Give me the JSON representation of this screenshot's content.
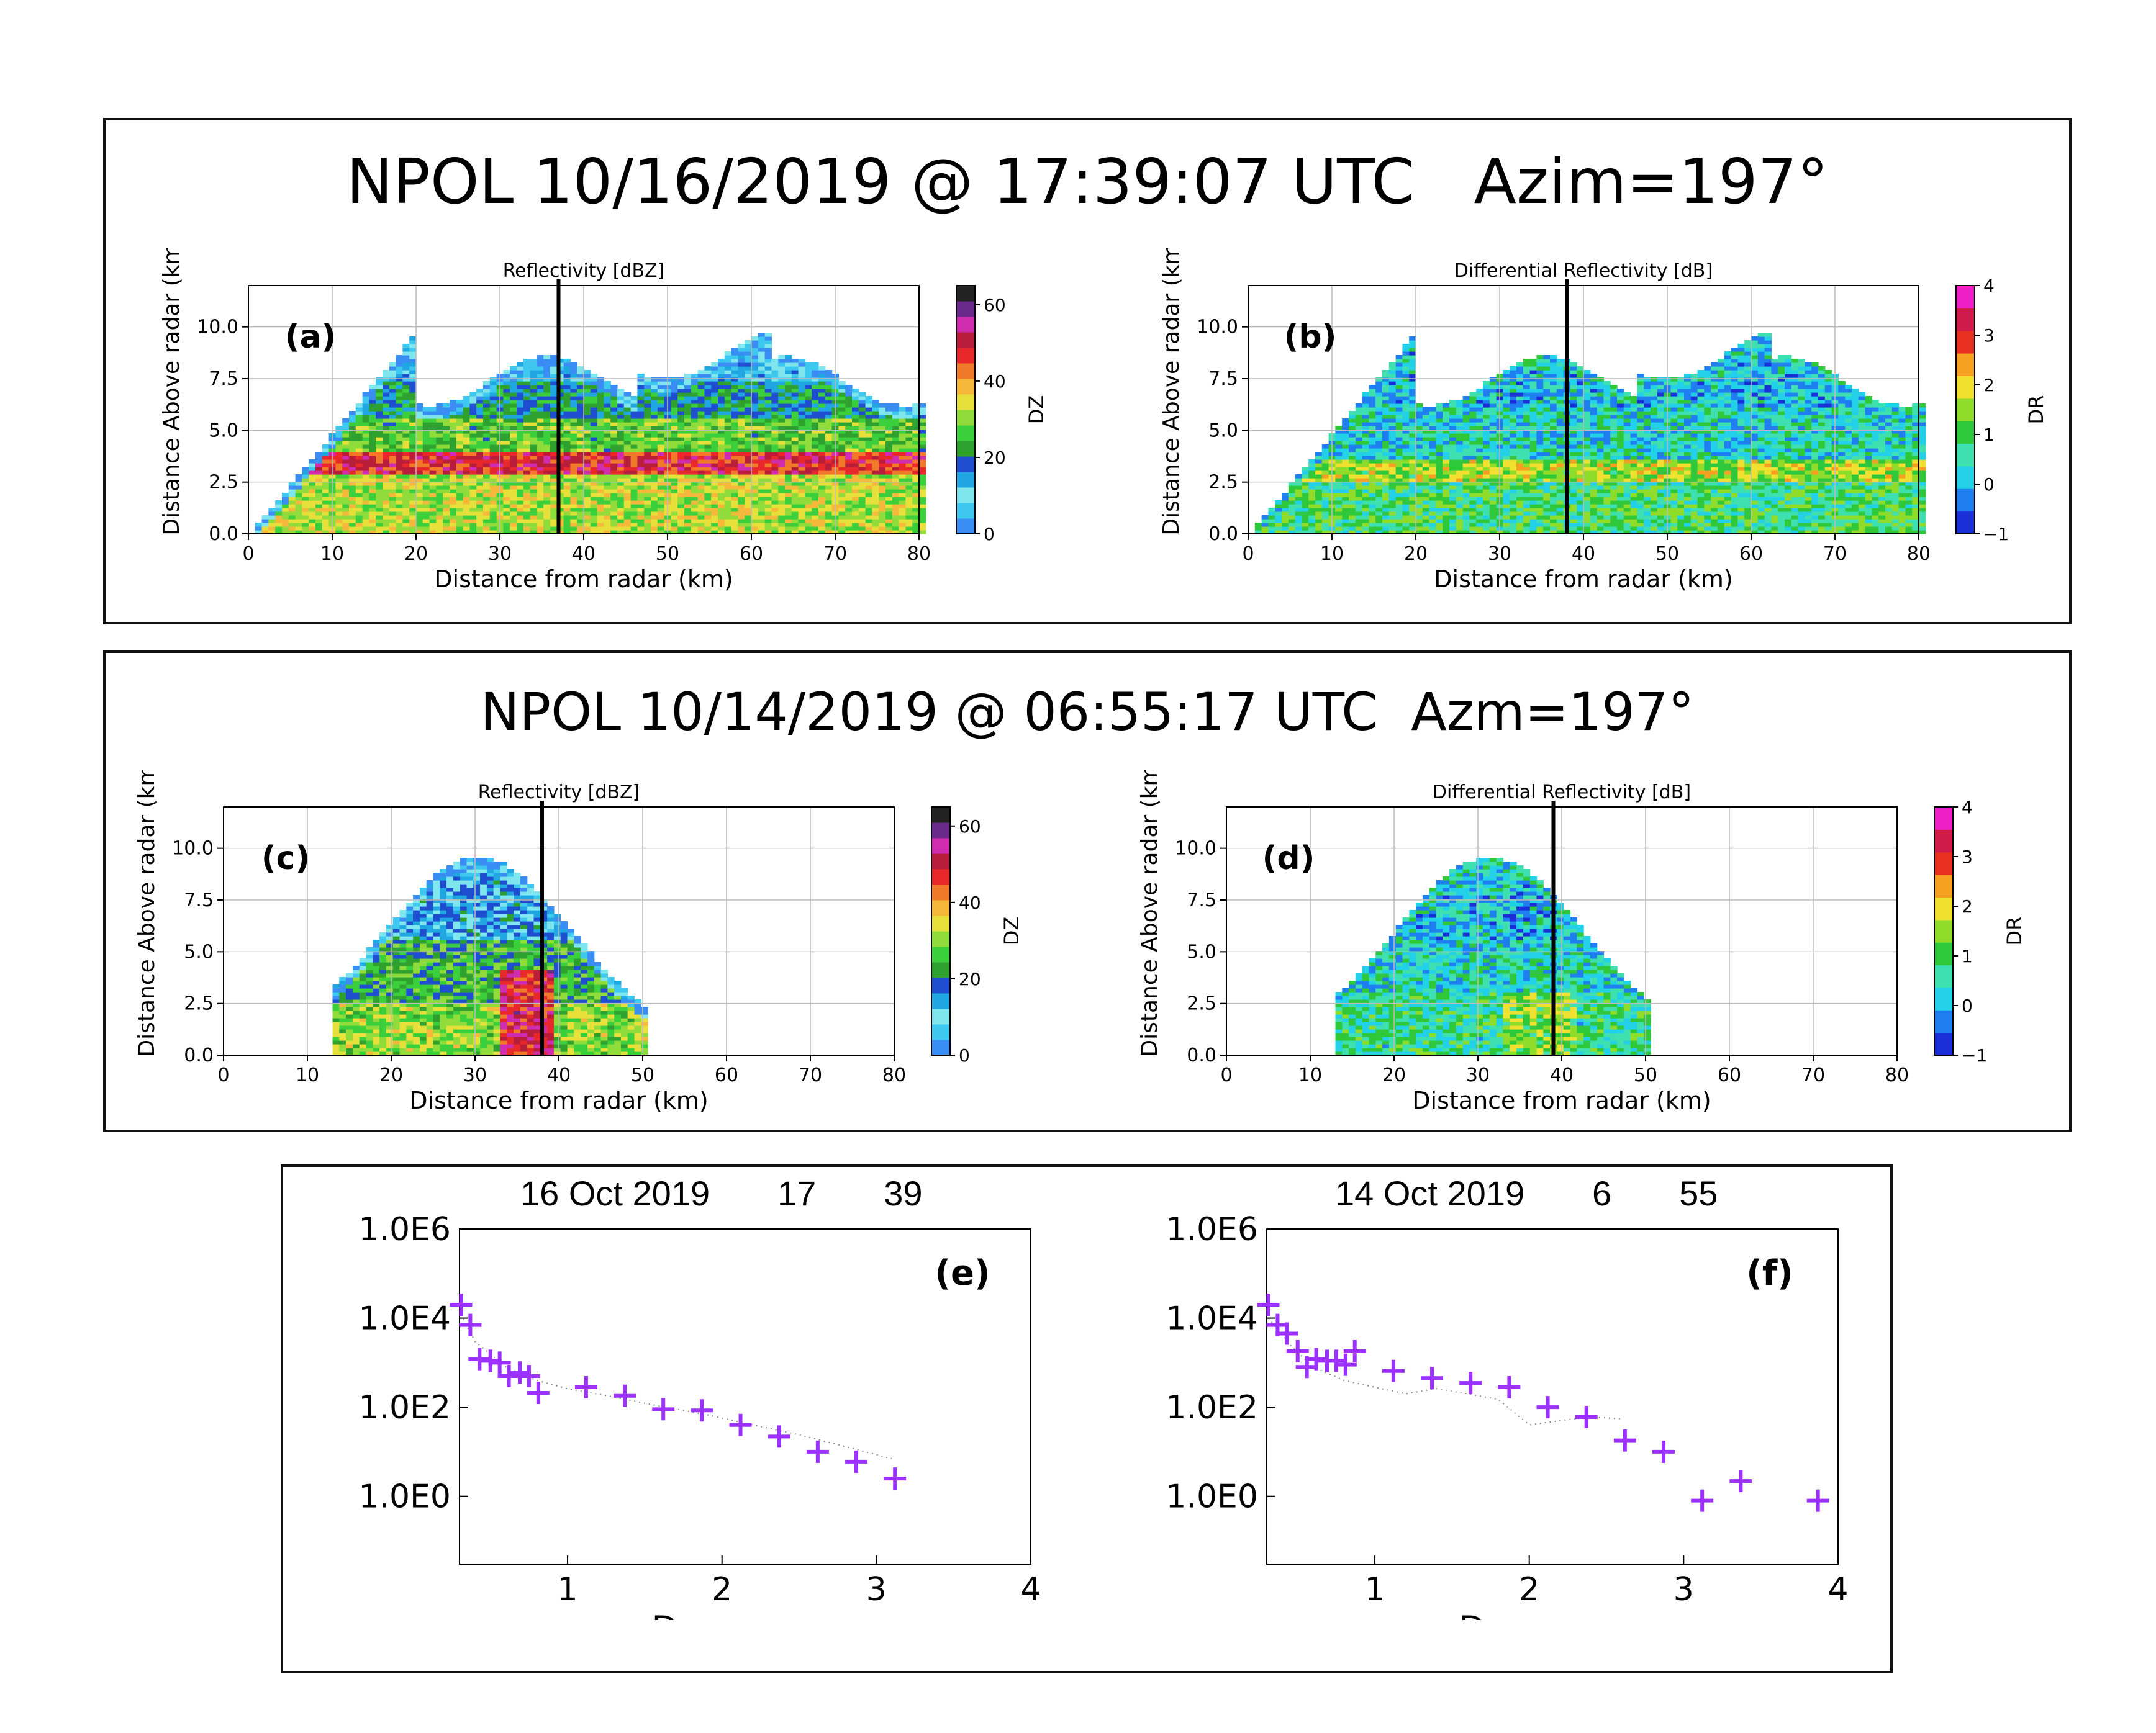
{
  "figure": {
    "top_panel_title": "NPOL 10/16/2019 @ 17:39:07 UTC   Azim=197°",
    "middle_panel_title": "NPOL 10/14/2019 @ 06:55:17 UTC  Azm=197°",
    "dsd_e_title": "16 Oct 2019       17       39",
    "dsd_f_title": "14 Oct 2019       6       55"
  },
  "colors": {
    "dz_colormap": [
      "#3a8df2",
      "#3ec8f0",
      "#7fe6ee",
      "#20a6e0",
      "#1f4ed0",
      "#2fa12f",
      "#3ccf3c",
      "#8fdc3a",
      "#e8e03a",
      "#f5b83a",
      "#f07a2a",
      "#e8282a",
      "#b81e3a",
      "#d02cb0",
      "#6a2a8a",
      "#222222"
    ],
    "dr_colormap": [
      "#1a2fd8",
      "#1f7ff0",
      "#22d0e8",
      "#3fe0b0",
      "#2fc83a",
      "#8fdc2a",
      "#f0e030",
      "#f5a020",
      "#e83020",
      "#d01a4a",
      "#f020c8"
    ],
    "marker_purple": "#9b30ff"
  },
  "chart_data": [
    {
      "id": "a",
      "label": "(a)",
      "type": "heatmap",
      "title": "Reflectivity [dBZ]",
      "xlabel": "Distance from radar (km)",
      "ylabel": "Distance Above radar  (km)",
      "xlim": [
        0,
        80
      ],
      "ylim": [
        0,
        12
      ],
      "xticks": [
        "0",
        "10",
        "20",
        "30",
        "40",
        "50",
        "60",
        "70",
        "80"
      ],
      "yticks": [
        "0.0",
        "2.5",
        "5.0",
        "7.5",
        "10.0"
      ],
      "colorbar": {
        "label": "DZ",
        "range": [
          0,
          65
        ],
        "ticks": [
          "0",
          "20",
          "40",
          "60"
        ]
      },
      "vline_km": 37,
      "profile": {
        "kind": "stratiform",
        "field": "DZ",
        "start_km": 0,
        "end_km": 80,
        "cone_top_km": 20,
        "layers": [
          [
            0,
            2.8,
            32
          ],
          [
            2.8,
            3.8,
            48
          ],
          [
            3.8,
            5.5,
            27
          ],
          [
            5.5,
            7.2,
            20
          ],
          [
            7.2,
            8.2,
            10
          ]
        ]
      }
    },
    {
      "id": "b",
      "label": "(b)",
      "type": "heatmap",
      "title": "Differential Reflectivity [dB]",
      "xlabel": "Distance from radar (km)",
      "ylabel": "Distance Above radar  (km)",
      "xlim": [
        0,
        80
      ],
      "ylim": [
        0,
        12
      ],
      "xticks": [
        "0",
        "10",
        "20",
        "30",
        "40",
        "50",
        "60",
        "70",
        "80"
      ],
      "yticks": [
        "0.0",
        "2.5",
        "5.0",
        "7.5",
        "10.0"
      ],
      "colorbar": {
        "label": "DR",
        "range": [
          -1,
          4
        ],
        "ticks": [
          "−1",
          "0",
          "1",
          "2",
          "3",
          "4"
        ]
      },
      "vline_km": 38,
      "profile": {
        "kind": "stratiform",
        "field": "DR",
        "start_km": 0,
        "end_km": 80,
        "cone_top_km": 20,
        "layers": [
          [
            0,
            2.5,
            0.9
          ],
          [
            2.5,
            3.5,
            1.6
          ],
          [
            3.5,
            6.0,
            0.35
          ],
          [
            6.0,
            8.5,
            0.1
          ]
        ]
      }
    },
    {
      "id": "c",
      "label": "(c)",
      "type": "heatmap",
      "title": "Reflectivity [dBZ]",
      "xlabel": "Distance from radar (km)",
      "ylabel": "Distance Above radar  (km)",
      "xlim": [
        0,
        80
      ],
      "ylim": [
        0,
        12
      ],
      "xticks": [
        "0",
        "10",
        "20",
        "30",
        "40",
        "50",
        "60",
        "70",
        "80"
      ],
      "yticks": [
        "0.0",
        "2.5",
        "5.0",
        "7.5",
        "10.0"
      ],
      "colorbar": {
        "label": "DZ",
        "range": [
          0,
          65
        ],
        "ticks": [
          "0",
          "20",
          "40",
          "60"
        ]
      },
      "vline_km": 38,
      "profile": {
        "kind": "convective",
        "field": "DZ",
        "start_km": 13,
        "end_km": 50,
        "core_km": 36,
        "layers": [
          [
            0,
            2.5,
            30
          ],
          [
            2.5,
            5.5,
            24
          ],
          [
            5.5,
            9.5,
            14
          ]
        ]
      }
    },
    {
      "id": "d",
      "label": "(d)",
      "type": "heatmap",
      "title": "Differential Reflectivity [dB]",
      "xlabel": "Distance from radar (km)",
      "ylabel": "Distance Above radar  (km)",
      "xlim": [
        0,
        80
      ],
      "ylim": [
        0,
        12
      ],
      "xticks": [
        "0",
        "10",
        "20",
        "30",
        "40",
        "50",
        "60",
        "70",
        "80"
      ],
      "yticks": [
        "0.0",
        "2.5",
        "5.0",
        "7.5",
        "10.0"
      ],
      "colorbar": {
        "label": "DR",
        "range": [
          -1,
          4
        ],
        "ticks": [
          "−1",
          "0",
          "1",
          "2",
          "3",
          "4"
        ]
      },
      "vline_km": 39,
      "profile": {
        "kind": "convective",
        "field": "DR",
        "start_km": 13,
        "end_km": 50,
        "core_km": 37,
        "layers": [
          [
            0,
            3.0,
            0.7
          ],
          [
            3.0,
            5.5,
            0.4
          ],
          [
            5.5,
            9.5,
            0.1
          ]
        ]
      }
    },
    {
      "id": "e",
      "label": "(e)",
      "type": "scatter",
      "xlabel": "D, mm",
      "ylabel": "",
      "xlim": [
        0.3,
        4
      ],
      "ylim": [
        0.03,
        1000000
      ],
      "yscale": "log",
      "xticks": [
        "1",
        "2",
        "3",
        "4"
      ],
      "yticks": [
        "1.0E6",
        "1.0E4",
        "1.0E2",
        "1.0E0"
      ],
      "x": [
        0.31,
        0.37,
        0.43,
        0.5,
        0.56,
        0.62,
        0.69,
        0.75,
        0.81,
        1.12,
        1.37,
        1.62,
        1.87,
        2.12,
        2.37,
        2.62,
        2.87,
        3.12
      ],
      "y": [
        20000,
        7000,
        1200,
        1100,
        1000,
        500,
        600,
        500,
        210,
        280,
        180,
        90,
        85,
        40,
        22,
        10,
        6,
        2.5
      ],
      "fit_x": [
        0.31,
        0.4,
        0.6,
        0.8,
        1.0,
        1.3,
        1.6,
        1.9,
        2.2,
        2.5,
        2.8,
        3.1
      ],
      "fit_y": [
        12000,
        3000,
        800,
        400,
        260,
        170,
        105,
        68,
        40,
        24,
        13,
        7
      ]
    },
    {
      "id": "f",
      "label": "(f)",
      "type": "scatter",
      "xlabel": "D, mm",
      "ylabel": "",
      "xlim": [
        0.3,
        4
      ],
      "ylim": [
        0.03,
        1000000
      ],
      "yscale": "log",
      "xticks": [
        "1",
        "2",
        "3",
        "4"
      ],
      "yticks": [
        "1.0E6",
        "1.0E4",
        "1.0E2",
        "1.0E0"
      ],
      "x": [
        0.31,
        0.37,
        0.43,
        0.5,
        0.56,
        0.62,
        0.69,
        0.75,
        0.81,
        0.87,
        1.12,
        1.37,
        1.62,
        1.87,
        2.12,
        2.37,
        2.62,
        2.87,
        3.12,
        3.37,
        3.87
      ],
      "y": [
        20000,
        7000,
        4500,
        1800,
        800,
        1200,
        1100,
        1100,
        900,
        1800,
        650,
        450,
        350,
        280,
        100,
        60,
        18,
        10,
        0.8,
        2.2,
        0.8
      ],
      "fit_x": [
        0.31,
        0.45,
        0.6,
        0.8,
        1.0,
        1.2,
        1.4,
        1.6,
        1.8,
        2.0,
        2.2,
        2.4,
        2.6
      ],
      "fit_y": [
        10000,
        2500,
        800,
        400,
        280,
        200,
        260,
        200,
        150,
        40,
        50,
        60,
        55
      ]
    }
  ]
}
